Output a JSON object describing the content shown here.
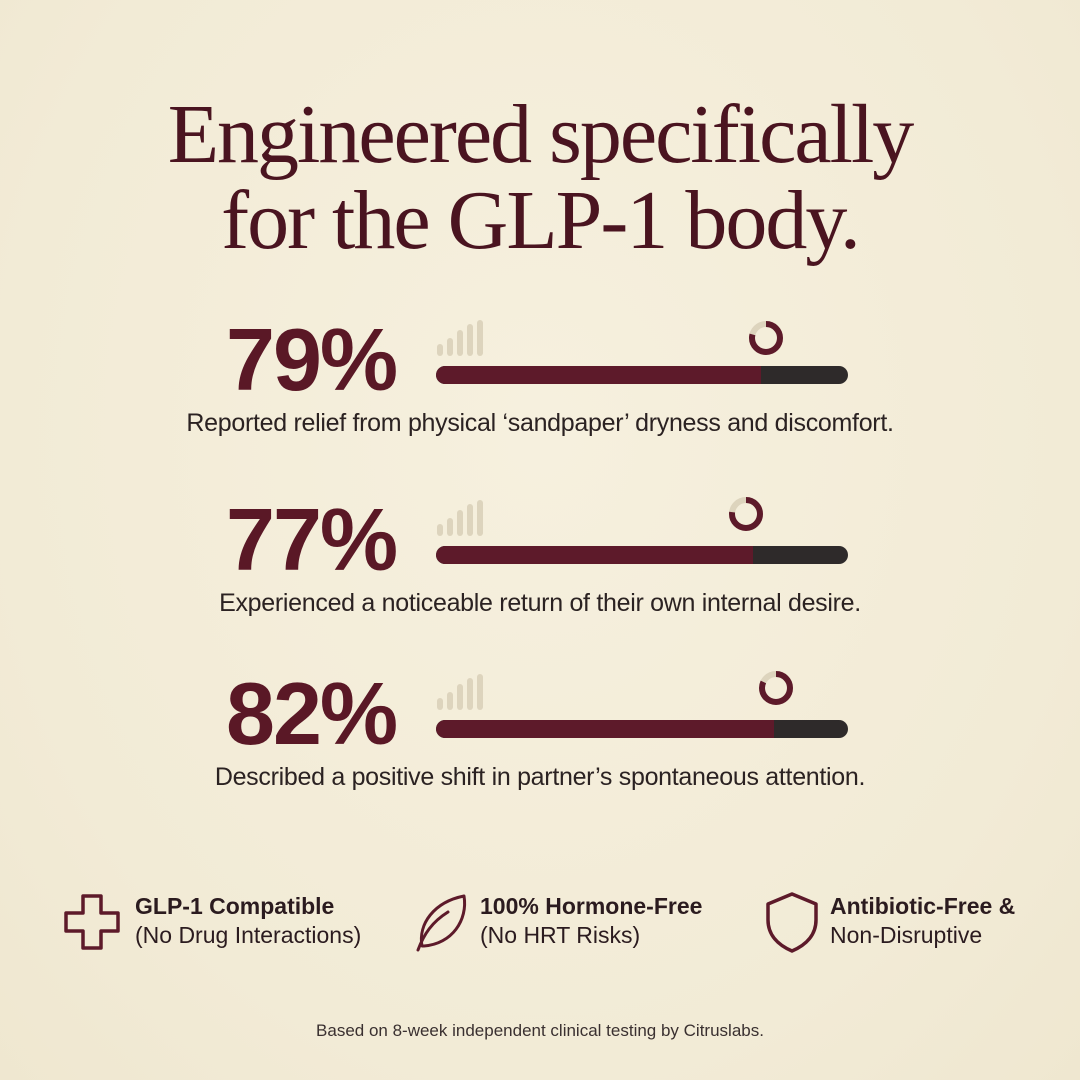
{
  "headline": {
    "line1": "Engineered specifically",
    "line2": "for the GLP-1 body."
  },
  "colors": {
    "background": "#f4eedb",
    "accent": "#5d1a2a",
    "track": "#2e2a2a",
    "text": "#2b2222"
  },
  "stats": [
    {
      "value": "79%",
      "percent": 79,
      "caption": "Reported relief from physical ‘sandpaper’ dryness and discomfort."
    },
    {
      "value": "77%",
      "percent": 77,
      "caption": "Experienced a noticeable return of their own internal desire."
    },
    {
      "value": "82%",
      "percent": 82,
      "caption": "Described a positive shift in partner’s spontaneous attention."
    }
  ],
  "badges": [
    {
      "icon": "medical-cross-icon",
      "line1": "GLP-1 Compatible",
      "line2": "(No Drug Interactions)"
    },
    {
      "icon": "leaf-icon",
      "line1": "100% Hormone-Free",
      "line2": "(No HRT Risks)"
    },
    {
      "icon": "shield-icon",
      "line1": "Antibiotic-Free &",
      "line2": "Non-Disruptive"
    }
  ],
  "footnote": "Based on 8-week independent clinical testing by Citruslabs."
}
